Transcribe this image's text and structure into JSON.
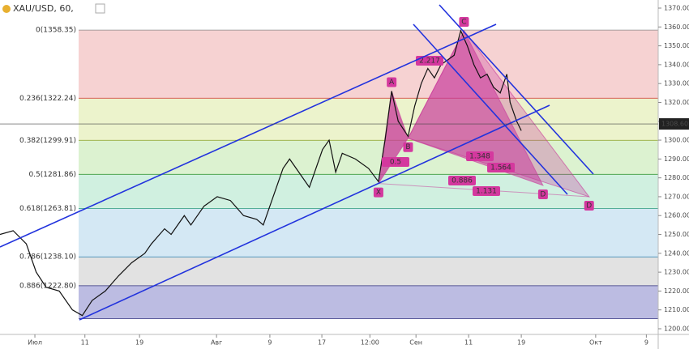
{
  "chart_data": {
    "type": "line",
    "title": "XAU/USD, 60,",
    "xlim": [
      0,
      100
    ],
    "xticks": [
      {
        "value": 5.3,
        "label": "Июл"
      },
      {
        "value": 12.9,
        "label": "11"
      },
      {
        "value": 21.2,
        "label": "19"
      },
      {
        "value": 32.9,
        "label": "Авг"
      },
      {
        "value": 41,
        "label": "9"
      },
      {
        "value": 48.9,
        "label": "17"
      },
      {
        "value": 56.2,
        "label": "12:00"
      },
      {
        "value": 63.2,
        "label": "Сен"
      },
      {
        "value": 71.2,
        "label": "11"
      },
      {
        "value": 79.2,
        "label": "19"
      },
      {
        "value": 90.5,
        "label": "Окт"
      },
      {
        "value": 98.2,
        "label": "9"
      }
    ],
    "ylim": [
      1200,
      1370
    ],
    "yticks": [
      {
        "value": 1200,
        "label": "1200.00"
      },
      {
        "value": 1210,
        "label": "1210.00"
      },
      {
        "value": 1220,
        "label": "1220.00"
      },
      {
        "value": 1230,
        "label": "1230.00"
      },
      {
        "value": 1240,
        "label": "1240.00"
      },
      {
        "value": 1250,
        "label": "1250.00"
      },
      {
        "value": 1260,
        "label": "1260.00"
      },
      {
        "value": 1270,
        "label": "1270.00"
      },
      {
        "value": 1280,
        "label": "1280.00"
      },
      {
        "value": 1290,
        "label": "1290.00"
      },
      {
        "value": 1300,
        "label": "1300.00"
      },
      {
        "value": 1310,
        "label": "1310.00"
      },
      {
        "value": 1320,
        "label": "1320.00"
      },
      {
        "value": 1330,
        "label": "1330.00"
      },
      {
        "value": 1340,
        "label": "1340.00"
      },
      {
        "value": 1350,
        "label": "1350.00"
      },
      {
        "value": 1360,
        "label": "1360.00"
      },
      {
        "value": 1370,
        "label": "1370.00"
      }
    ],
    "last_price": {
      "value": 1308.6,
      "label": "1308.60"
    },
    "series": [
      {
        "name": "XAU/USD",
        "color": "#111111",
        "x": [
          0,
          2,
          4,
          5.5,
          7,
          9,
          11,
          12.5,
          14,
          16,
          18,
          20,
          22,
          23,
          25,
          26,
          28,
          29,
          31,
          33,
          35,
          37,
          39,
          40,
          41,
          43,
          44,
          46,
          47,
          48,
          49,
          50,
          51,
          52,
          54,
          56,
          57.5,
          58.5,
          59.5,
          60.5,
          62,
          63,
          64,
          65,
          66,
          67,
          69,
          70,
          71,
          72,
          73,
          74,
          75,
          76,
          77,
          77.5,
          78.5,
          79.2
        ],
        "values": [
          1250,
          1252,
          1245,
          1230,
          1222,
          1220,
          1210,
          1207,
          1215,
          1220,
          1228,
          1235,
          1240,
          1245,
          1253,
          1250,
          1260,
          1255,
          1265,
          1270,
          1268,
          1260,
          1258,
          1255,
          1265,
          1285,
          1290,
          1280,
          1275,
          1285,
          1295,
          1300,
          1283,
          1293,
          1290,
          1285,
          1278,
          1300,
          1326,
          1310,
          1302,
          1318,
          1330,
          1338,
          1333,
          1340,
          1345,
          1358,
          1350,
          1340,
          1333,
          1335,
          1328,
          1325,
          1335,
          1320,
          1310,
          1305
        ]
      }
    ],
    "fib_levels": [
      {
        "price": 1358.35,
        "label": "0(1358.35)",
        "color": "#888888",
        "fill": "#f6d2d2"
      },
      {
        "price": 1322.24,
        "label": "0.236(1322.24)",
        "color": "#d03030",
        "fill": "#ecf3cc"
      },
      {
        "price": 1299.91,
        "label": "0.382(1299.91)",
        "color": "#8aa020",
        "fill": "#dcf2d0"
      },
      {
        "price": 1281.86,
        "label": "0.5(1281.86)",
        "color": "#3a9a3a",
        "fill": "#d0f0e0"
      },
      {
        "price": 1263.81,
        "label": "0.618(1263.81)",
        "color": "#2a9a7a",
        "fill": "#d4e8f4"
      },
      {
        "price": 1238.1,
        "label": "0.786(1238.10)",
        "color": "#2a80b0",
        "fill": "#e2e2e2"
      },
      {
        "price": 1222.8,
        "label": "0.886(1222.80)",
        "color": "#303080",
        "fill": "#bcbce2"
      },
      {
        "price": 1205.36,
        "label": null,
        "color": "#303080",
        "fill": null
      }
    ],
    "pattern_points": [
      {
        "label": "X",
        "x": 57.5,
        "price": 1277
      },
      {
        "label": "A",
        "x": 59.5,
        "price": 1326
      },
      {
        "label": "B",
        "x": 62,
        "price": 1301
      },
      {
        "label": "C",
        "x": 70.5,
        "price": 1358
      },
      {
        "label": "D",
        "x": 82.5,
        "price": 1276
      },
      {
        "label": "D",
        "x": 89.5,
        "price": 1270
      }
    ],
    "pattern_ratios": [
      "2.217",
      "0.5",
      "1.348",
      "1.564",
      "0.886",
      "1.131"
    ]
  }
}
